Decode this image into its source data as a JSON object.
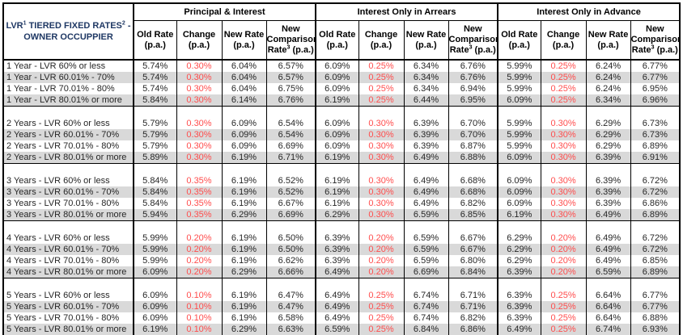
{
  "title": {
    "p1": "LVR",
    "s1": "1",
    "p2": " TIERED FIXED RATES",
    "s2": "2",
    "p3": " -",
    "line2": "OWNER OCCUPPIER"
  },
  "groups": [
    "Principal & Interest",
    "Interest Only in Arrears",
    "Interest Only in Advance"
  ],
  "columns": {
    "old_rate": {
      "l1": "Old Rate",
      "l2": "(p.a.)"
    },
    "change": {
      "l1": "Change",
      "l2": "(p.a.)"
    },
    "new_rate": {
      "l1": "New Rate",
      "l2": "(p.a.)"
    },
    "comparison": {
      "l1": "New",
      "l2": "Comparison",
      "l3a": "Rate",
      "sup": "3",
      "l3b": " (p.a.)"
    }
  },
  "colors": {
    "change_red": "#FF4D4D",
    "row_shade": "#D9D9D9",
    "title_navy": "#1F3864",
    "border": "#000000"
  },
  "sections": [
    {
      "rows": [
        {
          "label": "1 Year - LVR 60% or less",
          "values": [
            "5.74%",
            "0.30%",
            "6.04%",
            "6.57%",
            "6.09%",
            "0.25%",
            "6.34%",
            "6.76%",
            "5.99%",
            "0.25%",
            "6.24%",
            "6.77%"
          ]
        },
        {
          "label": "1 Year - LVR 60.01% - 70%",
          "values": [
            "5.74%",
            "0.30%",
            "6.04%",
            "6.57%",
            "6.09%",
            "0.25%",
            "6.34%",
            "6.76%",
            "5.99%",
            "0.25%",
            "6.24%",
            "6.77%"
          ]
        },
        {
          "label": "1 Year - LVR 70.01% - 80%",
          "values": [
            "5.74%",
            "0.30%",
            "6.04%",
            "6.75%",
            "6.09%",
            "0.25%",
            "6.34%",
            "6.94%",
            "5.99%",
            "0.25%",
            "6.24%",
            "6.95%"
          ]
        },
        {
          "label": "1 Year - LVR 80.01% or more",
          "values": [
            "5.84%",
            "0.30%",
            "6.14%",
            "6.76%",
            "6.19%",
            "0.25%",
            "6.44%",
            "6.95%",
            "6.09%",
            "0.25%",
            "6.34%",
            "6.96%"
          ]
        }
      ]
    },
    {
      "rows": [
        {
          "label": "2 Years - LVR 60% or less",
          "values": [
            "5.79%",
            "0.30%",
            "6.09%",
            "6.54%",
            "6.09%",
            "0.30%",
            "6.39%",
            "6.70%",
            "5.99%",
            "0.30%",
            "6.29%",
            "6.73%"
          ]
        },
        {
          "label": "2 Years - LVR 60.01% - 70%",
          "values": [
            "5.79%",
            "0.30%",
            "6.09%",
            "6.54%",
            "6.09%",
            "0.30%",
            "6.39%",
            "6.70%",
            "5.99%",
            "0.30%",
            "6.29%",
            "6.73%"
          ]
        },
        {
          "label": "2 Years - LVR 70.01% - 80%",
          "values": [
            "5.79%",
            "0.30%",
            "6.09%",
            "6.69%",
            "6.09%",
            "0.30%",
            "6.39%",
            "6.87%",
            "5.99%",
            "0.30%",
            "6.29%",
            "6.89%"
          ]
        },
        {
          "label": "2 Years - LVR 80.01% or more",
          "values": [
            "5.89%",
            "0.30%",
            "6.19%",
            "6.71%",
            "6.19%",
            "0.30%",
            "6.49%",
            "6.88%",
            "6.09%",
            "0.30%",
            "6.39%",
            "6.91%"
          ]
        }
      ]
    },
    {
      "rows": [
        {
          "label": "3 Years - LVR 60% or less",
          "values": [
            "5.84%",
            "0.35%",
            "6.19%",
            "6.52%",
            "6.19%",
            "0.30%",
            "6.49%",
            "6.68%",
            "6.09%",
            "0.30%",
            "6.39%",
            "6.72%"
          ]
        },
        {
          "label": "3 Years - LVR 60.01% - 70%",
          "values": [
            "5.84%",
            "0.35%",
            "6.19%",
            "6.52%",
            "6.19%",
            "0.30%",
            "6.49%",
            "6.68%",
            "6.09%",
            "0.30%",
            "6.39%",
            "6.72%"
          ]
        },
        {
          "label": "3 Years - LVR 70.01% - 80%",
          "values": [
            "5.84%",
            "0.35%",
            "6.19%",
            "6.67%",
            "6.19%",
            "0.30%",
            "6.49%",
            "6.82%",
            "6.09%",
            "0.30%",
            "6.39%",
            "6.86%"
          ]
        },
        {
          "label": "3 Years - LVR 80.01% or more",
          "values": [
            "5.94%",
            "0.35%",
            "6.29%",
            "6.69%",
            "6.29%",
            "0.30%",
            "6.59%",
            "6.85%",
            "6.19%",
            "0.30%",
            "6.49%",
            "6.89%"
          ]
        }
      ]
    },
    {
      "rows": [
        {
          "label": "4 Years - LVR 60% or less",
          "values": [
            "5.99%",
            "0.20%",
            "6.19%",
            "6.50%",
            "6.39%",
            "0.20%",
            "6.59%",
            "6.67%",
            "6.29%",
            "0.20%",
            "6.49%",
            "6.72%"
          ]
        },
        {
          "label": "4 Years - LVR 60.01% - 70%",
          "values": [
            "5.99%",
            "0.20%",
            "6.19%",
            "6.50%",
            "6.39%",
            "0.20%",
            "6.59%",
            "6.67%",
            "6.29%",
            "0.20%",
            "6.49%",
            "6.72%"
          ]
        },
        {
          "label": "4 Years - LVR 70.01% - 80%",
          "values": [
            "5.99%",
            "0.20%",
            "6.19%",
            "6.62%",
            "6.39%",
            "0.20%",
            "6.59%",
            "6.80%",
            "6.29%",
            "0.20%",
            "6.49%",
            "6.85%"
          ]
        },
        {
          "label": "4 Years - LVR 80.01% or more",
          "values": [
            "6.09%",
            "0.20%",
            "6.29%",
            "6.66%",
            "6.49%",
            "0.20%",
            "6.69%",
            "6.84%",
            "6.39%",
            "0.20%",
            "6.59%",
            "6.89%"
          ]
        }
      ]
    },
    {
      "rows": [
        {
          "label": "5 Years - LVR 60% or less",
          "values": [
            "6.09%",
            "0.10%",
            "6.19%",
            "6.47%",
            "6.49%",
            "0.25%",
            "6.74%",
            "6.71%",
            "6.39%",
            "0.25%",
            "6.64%",
            "6.77%"
          ]
        },
        {
          "label": "5 Years - LVR 60.01% - 70%",
          "values": [
            "6.09%",
            "0.10%",
            "6.19%",
            "6.47%",
            "6.49%",
            "0.25%",
            "6.74%",
            "6.71%",
            "6.39%",
            "0.25%",
            "6.64%",
            "6.77%"
          ]
        },
        {
          "label": "5 Years - LVR 70.01% - 80%",
          "values": [
            "6.09%",
            "0.10%",
            "6.19%",
            "6.58%",
            "6.49%",
            "0.25%",
            "6.74%",
            "6.82%",
            "6.39%",
            "0.25%",
            "6.64%",
            "6.88%"
          ]
        },
        {
          "label": "5 Years - LVR 80.01% or more",
          "values": [
            "6.19%",
            "0.10%",
            "6.29%",
            "6.63%",
            "6.59%",
            "0.25%",
            "6.84%",
            "6.86%",
            "6.49%",
            "0.25%",
            "6.74%",
            "6.93%"
          ]
        }
      ]
    }
  ]
}
